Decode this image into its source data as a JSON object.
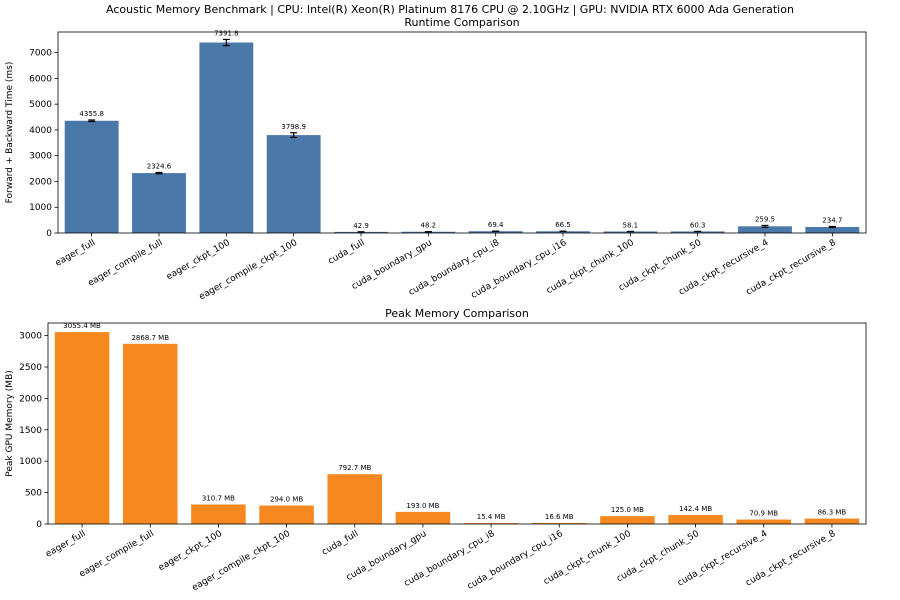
{
  "suptitle": "Acoustic Memory Benchmark | CPU: Intel(R) Xeon(R) Platinum 8176 CPU @ 2.10GHz | GPU: NVIDIA RTX 6000 Ada Generation",
  "chart_data": [
    {
      "type": "bar",
      "title": "Runtime Comparison",
      "xlabel": "",
      "ylabel": "Forward + Backward Time (ms)",
      "ylim": [
        0,
        7800
      ],
      "yticks": [
        0,
        1000,
        2000,
        3000,
        4000,
        5000,
        6000,
        7000
      ],
      "grid": false,
      "bar_color": "#4a78a8",
      "categories": [
        "eager_full",
        "eager_compile_full",
        "eager_ckpt_100",
        "eager_compile_ckpt_100",
        "cuda_full",
        "cuda_boundary_gpu",
        "cuda_boundary_cpu_i8",
        "cuda_boundary_cpu_i16",
        "cuda_ckpt_chunk_100",
        "cuda_ckpt_chunk_50",
        "cuda_ckpt_recursive_4",
        "cuda_ckpt_recursive_8"
      ],
      "values": [
        4355.8,
        2324.6,
        7391.8,
        3798.9,
        42.9,
        48.2,
        69.4,
        66.5,
        58.1,
        60.3,
        259.5,
        234.7
      ],
      "errors": [
        30,
        25,
        120,
        90,
        2,
        2,
        3,
        3,
        2,
        2,
        35,
        20
      ],
      "labels": [
        "4355.8",
        "2324.6",
        "7391.8",
        "3798.9",
        "42.9",
        "48.2",
        "69.4",
        "66.5",
        "58.1",
        "60.3",
        "259.5",
        "234.7"
      ]
    },
    {
      "type": "bar",
      "title": "Peak Memory Comparison",
      "xlabel": "",
      "ylabel": "Peak GPU Memory (MB)",
      "ylim": [
        0,
        3200
      ],
      "yticks": [
        0,
        500,
        1000,
        1500,
        2000,
        2500,
        3000
      ],
      "grid": false,
      "bar_color": "#f5891f",
      "categories": [
        "eager_full",
        "eager_compile_full",
        "eager_ckpt_100",
        "eager_compile_ckpt_100",
        "cuda_full",
        "cuda_boundary_gpu",
        "cuda_boundary_cpu_i8",
        "cuda_boundary_cpu_i16",
        "cuda_ckpt_chunk_100",
        "cuda_ckpt_chunk_50",
        "cuda_ckpt_recursive_4",
        "cuda_ckpt_recursive_8"
      ],
      "values": [
        3055.4,
        2868.7,
        310.7,
        294.0,
        792.7,
        193.0,
        15.4,
        16.6,
        125.0,
        142.4,
        70.9,
        86.3
      ],
      "labels": [
        "3055.4 MB",
        "2868.7 MB",
        "310.7 MB",
        "294.0 MB",
        "792.7 MB",
        "193.0 MB",
        "15.4 MB",
        "16.6 MB",
        "125.0 MB",
        "142.4 MB",
        "70.9 MB",
        "86.3 MB"
      ]
    }
  ]
}
